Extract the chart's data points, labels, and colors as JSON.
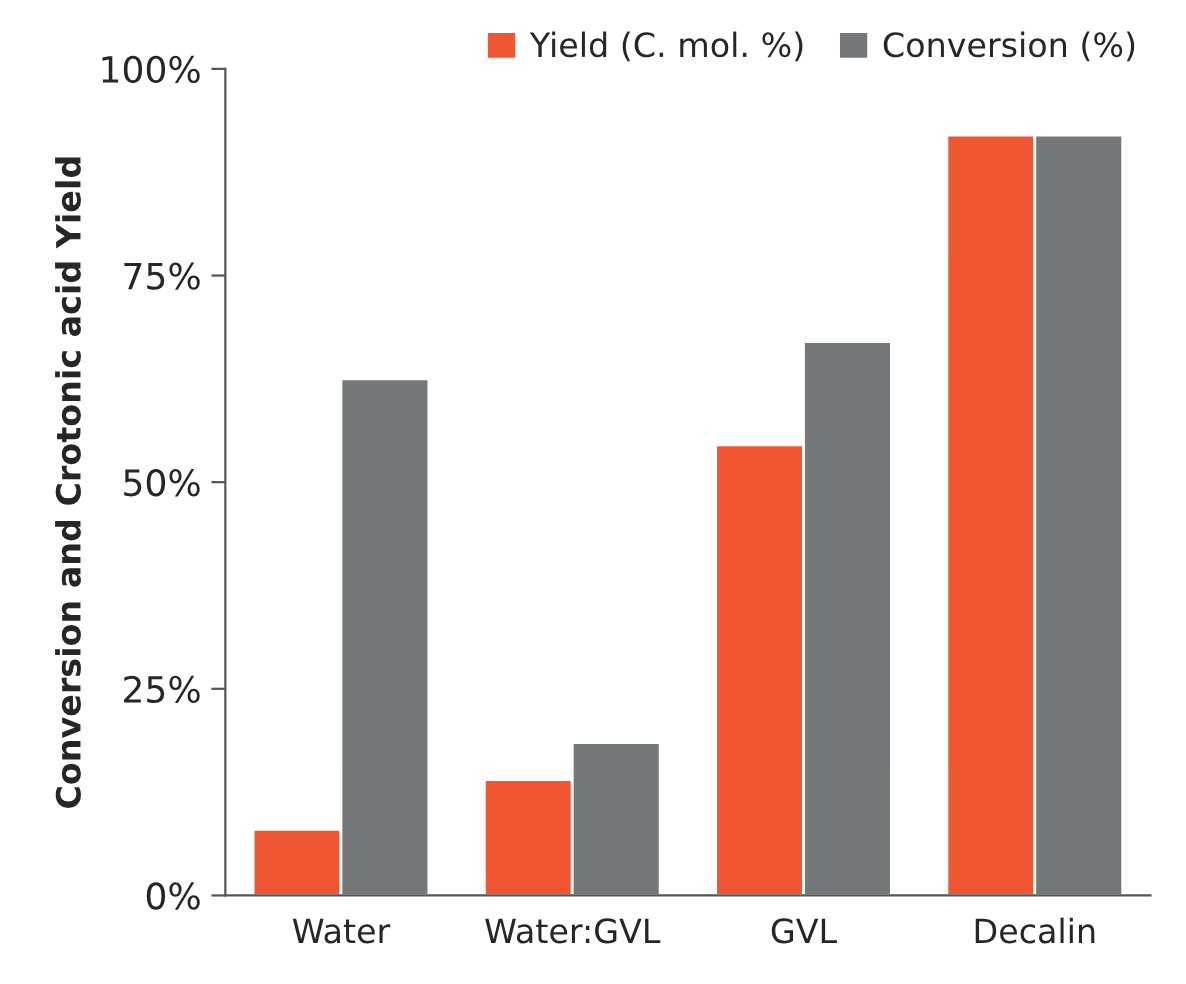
{
  "chart_data": {
    "type": "bar",
    "ylabel": "Conversion and Crotonic acid Yield",
    "categories": [
      "Water",
      "Water:GVL",
      "GVL",
      "Decalin"
    ],
    "series": [
      {
        "name": "Yield (C. mol. %)",
        "color": "#ef5631",
        "values": [
          8,
          14,
          54.5,
          92
        ]
      },
      {
        "name": "Conversion (%)",
        "color": "#75787a",
        "values": [
          62.5,
          18.5,
          67,
          92
        ]
      }
    ],
    "ylim": [
      0,
      100
    ],
    "yticks": [
      {
        "value": 0,
        "label": "0%"
      },
      {
        "value": 25,
        "label": "25%"
      },
      {
        "value": 50,
        "label": "50%"
      },
      {
        "value": 75,
        "label": "75%"
      },
      {
        "value": 100,
        "label": "100%"
      }
    ],
    "grid": false,
    "legend": "top right"
  }
}
